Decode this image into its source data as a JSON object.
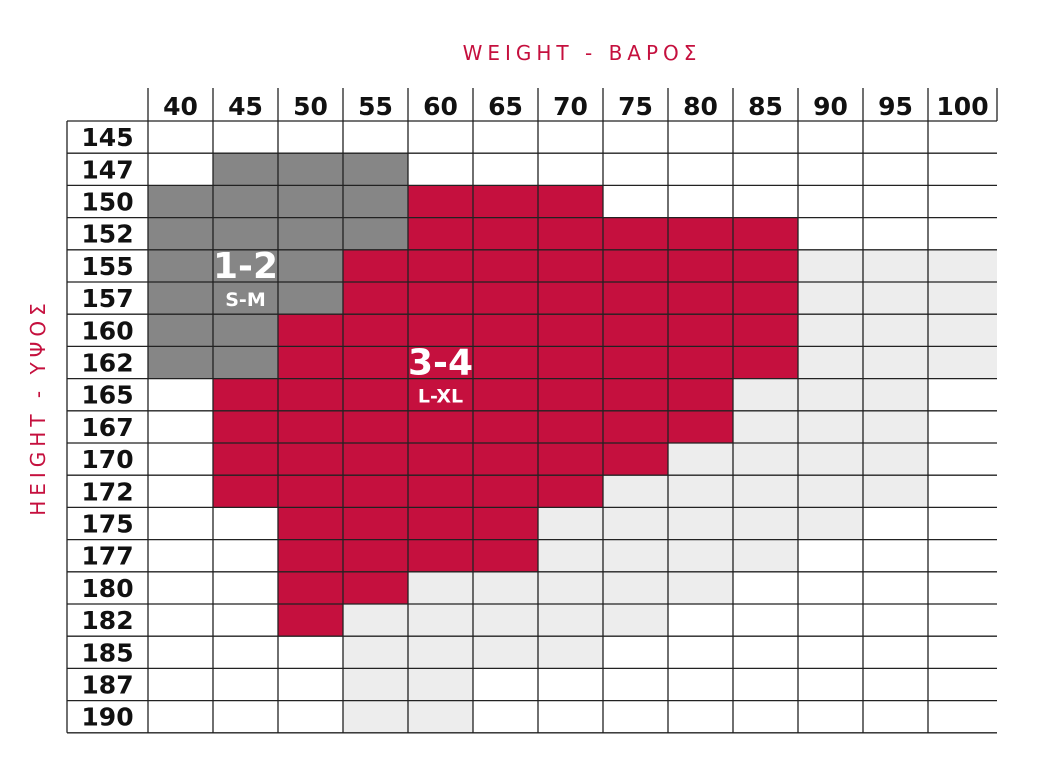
{
  "chart_data": {
    "type": "heatmap",
    "title": "",
    "xlabel": "WEIGHT - ΒΑΡΟΣ",
    "ylabel": "HEIGHT - ΥΨΟΣ",
    "x_categories": [
      "40",
      "45",
      "50",
      "55",
      "60",
      "65",
      "70",
      "75",
      "80",
      "85",
      "90",
      "95",
      "100"
    ],
    "y_categories": [
      "145",
      "147",
      "150",
      "152",
      "155",
      "157",
      "160",
      "162",
      "165",
      "167",
      "170",
      "172",
      "175",
      "177",
      "180",
      "182",
      "185",
      "187",
      "190"
    ],
    "zones": [
      {
        "code": "1-2",
        "size": "S-M",
        "color": "#868686",
        "cells": [
          [
            "45",
            "147"
          ],
          [
            "50",
            "147"
          ],
          [
            "55",
            "147"
          ],
          [
            "40",
            "150"
          ],
          [
            "45",
            "150"
          ],
          [
            "50",
            "150"
          ],
          [
            "55",
            "150"
          ],
          [
            "40",
            "152"
          ],
          [
            "45",
            "152"
          ],
          [
            "50",
            "152"
          ],
          [
            "55",
            "152"
          ],
          [
            "40",
            "155"
          ],
          [
            "45",
            "155"
          ],
          [
            "50",
            "155"
          ],
          [
            "40",
            "157"
          ],
          [
            "45",
            "157"
          ],
          [
            "50",
            "157"
          ],
          [
            "40",
            "160"
          ],
          [
            "45",
            "160"
          ],
          [
            "40",
            "162"
          ],
          [
            "45",
            "162"
          ]
        ]
      },
      {
        "code": "3-4",
        "size": "L-XL",
        "color": "#c5103e",
        "cells": [
          [
            "60",
            "150"
          ],
          [
            "65",
            "150"
          ],
          [
            "70",
            "150"
          ],
          [
            "60",
            "152"
          ],
          [
            "65",
            "152"
          ],
          [
            "70",
            "152"
          ],
          [
            "75",
            "152"
          ],
          [
            "80",
            "152"
          ],
          [
            "85",
            "152"
          ],
          [
            "55",
            "155"
          ],
          [
            "60",
            "155"
          ],
          [
            "65",
            "155"
          ],
          [
            "70",
            "155"
          ],
          [
            "75",
            "155"
          ],
          [
            "80",
            "155"
          ],
          [
            "85",
            "155"
          ],
          [
            "55",
            "157"
          ],
          [
            "60",
            "157"
          ],
          [
            "65",
            "157"
          ],
          [
            "70",
            "157"
          ],
          [
            "75",
            "157"
          ],
          [
            "80",
            "157"
          ],
          [
            "85",
            "157"
          ],
          [
            "50",
            "160"
          ],
          [
            "55",
            "160"
          ],
          [
            "60",
            "160"
          ],
          [
            "65",
            "160"
          ],
          [
            "70",
            "160"
          ],
          [
            "75",
            "160"
          ],
          [
            "80",
            "160"
          ],
          [
            "85",
            "160"
          ],
          [
            "50",
            "162"
          ],
          [
            "55",
            "162"
          ],
          [
            "60",
            "162"
          ],
          [
            "65",
            "162"
          ],
          [
            "70",
            "162"
          ],
          [
            "75",
            "162"
          ],
          [
            "80",
            "162"
          ],
          [
            "85",
            "162"
          ],
          [
            "45",
            "165"
          ],
          [
            "50",
            "165"
          ],
          [
            "55",
            "165"
          ],
          [
            "60",
            "165"
          ],
          [
            "65",
            "165"
          ],
          [
            "70",
            "165"
          ],
          [
            "75",
            "165"
          ],
          [
            "80",
            "165"
          ],
          [
            "45",
            "167"
          ],
          [
            "50",
            "167"
          ],
          [
            "55",
            "167"
          ],
          [
            "60",
            "167"
          ],
          [
            "65",
            "167"
          ],
          [
            "70",
            "167"
          ],
          [
            "75",
            "167"
          ],
          [
            "80",
            "167"
          ],
          [
            "45",
            "170"
          ],
          [
            "50",
            "170"
          ],
          [
            "55",
            "170"
          ],
          [
            "60",
            "170"
          ],
          [
            "65",
            "170"
          ],
          [
            "70",
            "170"
          ],
          [
            "75",
            "170"
          ],
          [
            "45",
            "172"
          ],
          [
            "50",
            "172"
          ],
          [
            "55",
            "172"
          ],
          [
            "60",
            "172"
          ],
          [
            "65",
            "172"
          ],
          [
            "70",
            "172"
          ],
          [
            "50",
            "175"
          ],
          [
            "55",
            "175"
          ],
          [
            "60",
            "175"
          ],
          [
            "65",
            "175"
          ],
          [
            "50",
            "177"
          ],
          [
            "55",
            "177"
          ],
          [
            "60",
            "177"
          ],
          [
            "65",
            "177"
          ],
          [
            "50",
            "180"
          ],
          [
            "55",
            "180"
          ],
          [
            "50",
            "182"
          ]
        ]
      },
      {
        "code": "",
        "size": "",
        "color": "#ededed",
        "cells": [
          [
            "90",
            "155"
          ],
          [
            "95",
            "155"
          ],
          [
            "100",
            "155"
          ],
          [
            "90",
            "157"
          ],
          [
            "95",
            "157"
          ],
          [
            "100",
            "157"
          ],
          [
            "90",
            "160"
          ],
          [
            "95",
            "160"
          ],
          [
            "100",
            "160"
          ],
          [
            "90",
            "162"
          ],
          [
            "95",
            "162"
          ],
          [
            "100",
            "162"
          ],
          [
            "85",
            "165"
          ],
          [
            "90",
            "165"
          ],
          [
            "95",
            "165"
          ],
          [
            "85",
            "167"
          ],
          [
            "90",
            "167"
          ],
          [
            "95",
            "167"
          ],
          [
            "80",
            "170"
          ],
          [
            "85",
            "170"
          ],
          [
            "90",
            "170"
          ],
          [
            "95",
            "170"
          ],
          [
            "75",
            "172"
          ],
          [
            "80",
            "172"
          ],
          [
            "85",
            "172"
          ],
          [
            "90",
            "172"
          ],
          [
            "95",
            "172"
          ],
          [
            "70",
            "175"
          ],
          [
            "75",
            "175"
          ],
          [
            "80",
            "175"
          ],
          [
            "85",
            "175"
          ],
          [
            "90",
            "175"
          ],
          [
            "70",
            "177"
          ],
          [
            "75",
            "177"
          ],
          [
            "80",
            "177"
          ],
          [
            "85",
            "177"
          ],
          [
            "60",
            "180"
          ],
          [
            "65",
            "180"
          ],
          [
            "70",
            "180"
          ],
          [
            "75",
            "180"
          ],
          [
            "80",
            "180"
          ],
          [
            "55",
            "182"
          ],
          [
            "60",
            "182"
          ],
          [
            "65",
            "182"
          ],
          [
            "70",
            "182"
          ],
          [
            "75",
            "182"
          ],
          [
            "55",
            "185"
          ],
          [
            "60",
            "185"
          ],
          [
            "65",
            "185"
          ],
          [
            "70",
            "185"
          ],
          [
            "55",
            "187"
          ],
          [
            "60",
            "187"
          ],
          [
            "55",
            "190"
          ],
          [
            "60",
            "190"
          ]
        ]
      }
    ],
    "zone_labels": [
      {
        "code": "1-2",
        "size": "S-M",
        "x": "45",
        "y": "155"
      },
      {
        "code": "3-4",
        "size": "L-XL",
        "x": "60",
        "y": "162"
      }
    ],
    "colors": {
      "axis_title": "#c5103e",
      "grid": "#222222",
      "empty_cell": "#ffffff"
    },
    "grid": true
  }
}
